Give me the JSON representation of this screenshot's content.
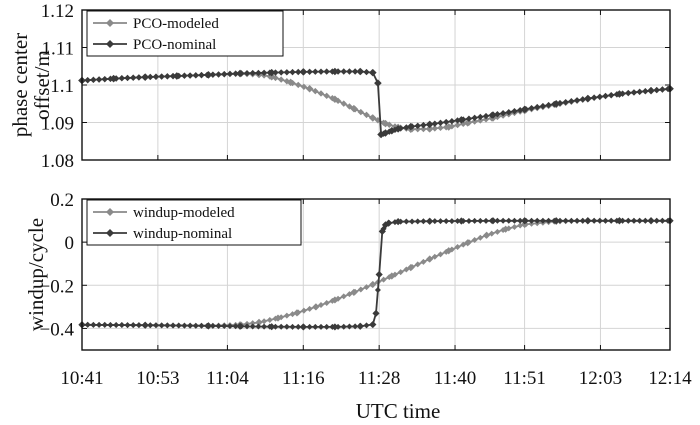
{
  "chart_data": [
    {
      "type": "line",
      "title": "",
      "xlabel": "",
      "ylabel_lines": [
        "phase center",
        "offset/m"
      ],
      "ylim": [
        1.08,
        1.12
      ],
      "yticks": [
        1.08,
        1.09,
        1.1,
        1.11,
        1.12
      ],
      "ytick_labels": [
        "1.08",
        "1.09",
        "1.1",
        "1.11",
        "1.12"
      ],
      "xlim": [
        0,
        93
      ],
      "xticks": [
        0,
        12,
        23,
        35,
        47,
        59,
        70,
        82,
        93
      ],
      "grid": true,
      "legend": {
        "placement": "top-left"
      },
      "series": [
        {
          "name": "PCO-modeled",
          "color": "#8a8a8a",
          "x": [
            0,
            5,
            10,
            15,
            20,
            25,
            28,
            30,
            33,
            36,
            40,
            43,
            46,
            48,
            50,
            52,
            55,
            58,
            61,
            65,
            70,
            75,
            80,
            85,
            90,
            93
          ],
          "y": [
            1.1012,
            1.1017,
            1.1021,
            1.1024,
            1.1027,
            1.103,
            1.1028,
            1.1022,
            1.1007,
            1.099,
            1.0962,
            1.0937,
            1.0912,
            1.0897,
            1.0887,
            1.0882,
            1.0883,
            1.0888,
            1.0899,
            1.0912,
            1.0932,
            1.0948,
            1.0963,
            1.0976,
            1.0985,
            1.099
          ]
        },
        {
          "name": "PCO-nominal",
          "color": "#3a3a3a",
          "x": [
            0,
            5,
            10,
            15,
            20,
            25,
            30,
            35,
            40,
            44,
            46,
            46.8,
            47.3,
            48,
            49,
            50,
            52,
            55,
            60,
            65,
            70,
            75,
            80,
            85,
            90,
            93
          ],
          "y": [
            1.1012,
            1.1017,
            1.1021,
            1.1024,
            1.1027,
            1.1031,
            1.1033,
            1.1035,
            1.1036,
            1.1036,
            1.1033,
            1.1005,
            1.0868,
            1.0872,
            1.0878,
            1.0883,
            1.0889,
            1.0895,
            1.0907,
            1.092,
            1.0935,
            1.095,
            1.0964,
            1.0976,
            1.0985,
            1.099
          ]
        }
      ]
    },
    {
      "type": "line",
      "title": "",
      "xlabel": "UTC time",
      "ylabel_lines": [
        "windup/cycle"
      ],
      "ylim": [
        -0.5,
        0.2
      ],
      "yticks": [
        -0.4,
        -0.2,
        0,
        0.2
      ],
      "ytick_labels": [
        "−0.4",
        "−0.2",
        "0",
        "0.2"
      ],
      "xlim": [
        0,
        93
      ],
      "xticks": [
        0,
        12,
        23,
        35,
        47,
        59,
        70,
        82,
        93
      ],
      "xtick_labels": [
        "10:41",
        "10:53",
        "11:04",
        "11:16",
        "11:28",
        "11:40",
        "11:51",
        "12:03",
        "12:14"
      ],
      "grid": true,
      "legend": {
        "placement": "top-left"
      },
      "series": [
        {
          "name": "windup-modeled",
          "color": "#8a8a8a",
          "x": [
            0,
            10,
            20,
            25,
            28,
            31,
            34,
            37,
            40,
            43,
            46,
            49,
            52,
            55,
            58,
            61,
            64,
            67,
            70,
            75,
            80,
            85,
            90,
            93
          ],
          "y": [
            -0.383,
            -0.385,
            -0.388,
            -0.383,
            -0.372,
            -0.352,
            -0.328,
            -0.3,
            -0.268,
            -0.233,
            -0.196,
            -0.157,
            -0.118,
            -0.078,
            -0.04,
            -0.003,
            0.032,
            0.06,
            0.082,
            0.096,
            0.099,
            0.099,
            0.099,
            0.099
          ]
        },
        {
          "name": "windup-nominal",
          "color": "#3a3a3a",
          "x": [
            0,
            10,
            20,
            25,
            30,
            35,
            40,
            44,
            46,
            46.5,
            47,
            47.5,
            48,
            48.5,
            50,
            55,
            60,
            65,
            70,
            75,
            80,
            85,
            90,
            93
          ],
          "y": [
            -0.383,
            -0.385,
            -0.388,
            -0.39,
            -0.392,
            -0.393,
            -0.393,
            -0.39,
            -0.382,
            -0.33,
            -0.15,
            0.05,
            0.08,
            0.088,
            0.095,
            0.097,
            0.098,
            0.099,
            0.099,
            0.099,
            0.099,
            0.099,
            0.099,
            0.099
          ]
        }
      ]
    }
  ]
}
